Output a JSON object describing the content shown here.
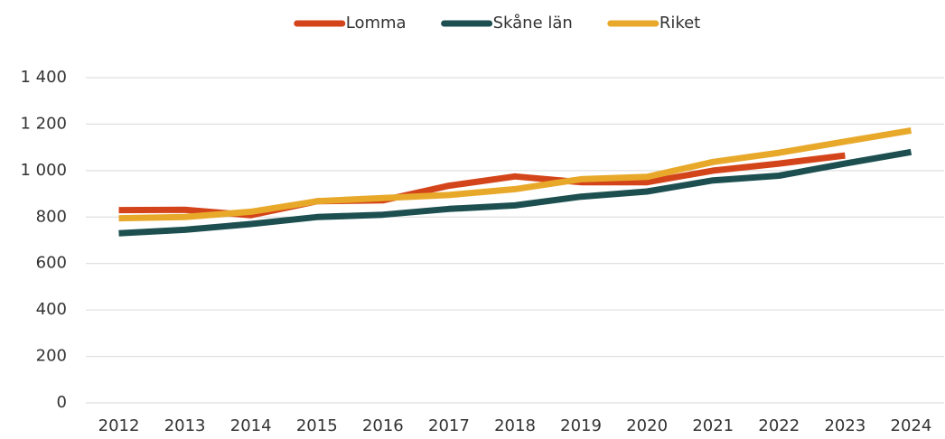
{
  "chart_data": {
    "type": "line",
    "categories": [
      "2012",
      "2013",
      "2014",
      "2015",
      "2016",
      "2017",
      "2018",
      "2019",
      "2020",
      "2021",
      "2022",
      "2023",
      "2024"
    ],
    "series": [
      {
        "name": "Lomma",
        "color": "#d4441a",
        "values": [
          830,
          831,
          808,
          868,
          872,
          935,
          975,
          950,
          950,
          1000,
          1030,
          1065,
          null
        ]
      },
      {
        "name": "Skåne län",
        "color": "#1d4f50",
        "values": [
          730,
          745,
          770,
          800,
          810,
          835,
          850,
          888,
          910,
          958,
          978,
          1030,
          1080
        ]
      },
      {
        "name": "Riket",
        "color": "#e8a92b",
        "values": [
          795,
          800,
          823,
          868,
          882,
          895,
          920,
          963,
          973,
          1037,
          1077,
          1125,
          1173
        ]
      }
    ],
    "ylim": [
      0,
      1400
    ],
    "yticks": [
      0,
      200,
      400,
      600,
      800,
      {
        "value": 1000,
        "label": "1 000"
      },
      {
        "value": 1200,
        "label": "1 200"
      },
      {
        "value": 1400,
        "label": "1 400"
      }
    ],
    "grid": true,
    "legend": "top"
  }
}
